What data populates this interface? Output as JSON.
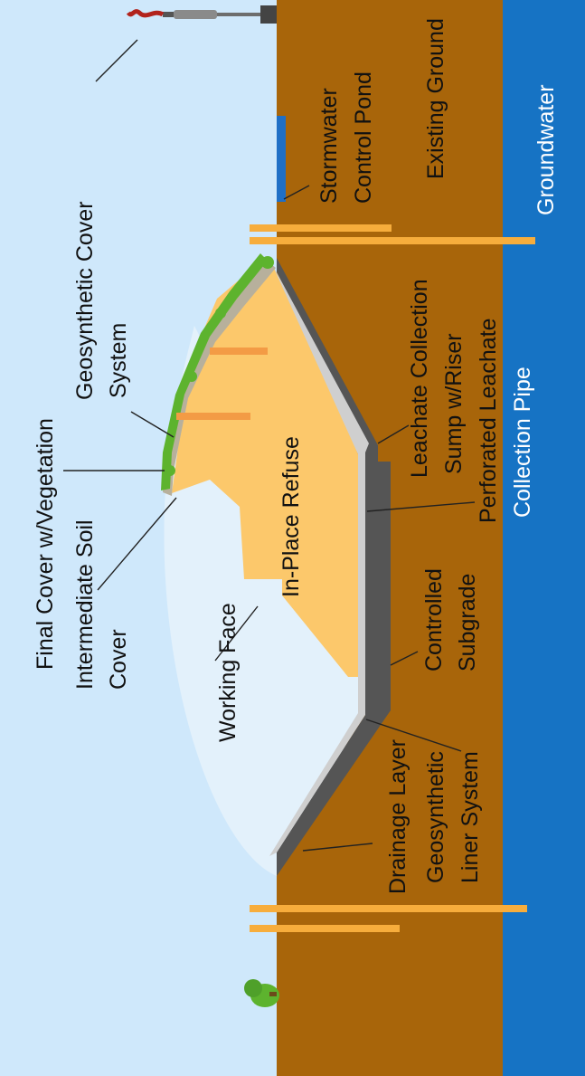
{
  "colors": {
    "sky": "#cfe8fb",
    "ground": "#a8650a",
    "groundwater": "#1673c4",
    "refuse": "#fcc86b",
    "working_face": "#e3f1fb",
    "vegetation": "#5db32e",
    "cover_soil": "#b7b09c",
    "liner_dark": "#555555",
    "drainage": "#cfcfcf",
    "well": "#f7ad3c",
    "vent": "#f39b45",
    "pond": "#1f6fc6"
  },
  "labels": {
    "final_cover_l1": "Final Cover w/Vegetation",
    "geosynthetic_cover_l1": "Geosynthetic Cover",
    "geosynthetic_cover_l2": "System",
    "intermediate_l1": "Intermediate Soil",
    "intermediate_l2": "Cover",
    "working_face": "Working Face",
    "refuse": "In-Place Refuse",
    "stormwater_l1": "Stormwater",
    "stormwater_l2": "Control Pond",
    "existing_ground": "Existing Ground",
    "groundwater": "Groundwater",
    "leachate_sump_l1": "Leachate Collection",
    "leachate_sump_l2": "Sump w/Riser",
    "perforated_l1": "Perforated Leachate",
    "perforated_l2": "Collection Pipe",
    "subgrade_l1": "Controlled",
    "subgrade_l2": "Subgrade",
    "drainage_layer": "Drainage Layer",
    "geo_liner_l1": "Geosynthetic",
    "geo_liner_l2": "Liner System"
  },
  "icons": {
    "vehicle": "gas-flare-icon",
    "tree": "shrub-icon"
  }
}
